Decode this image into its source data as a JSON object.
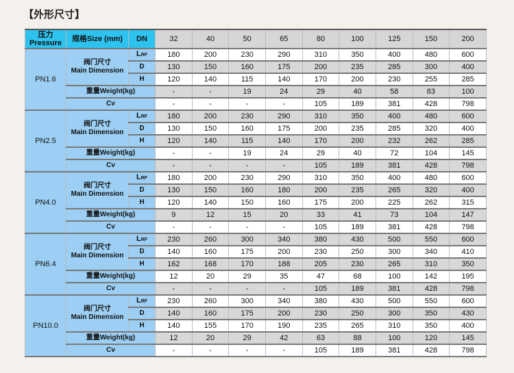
{
  "title": "【外形尺寸】",
  "header": {
    "pressure": "压力\nPressure",
    "pressure_cn": "压力",
    "pressure_en": "Pressure",
    "size": "规格Size (mm)",
    "dn": "DN",
    "sizes": [
      "32",
      "40",
      "50",
      "65",
      "80",
      "100",
      "125",
      "150",
      "200"
    ]
  },
  "labels": {
    "dim_cn": "阀门尺寸",
    "dim_en": "Main Dimension",
    "lrf": "LRF",
    "d": "D",
    "h": "H",
    "weight": "重量Weight(kg)",
    "cv": "Cv"
  },
  "groups": [
    {
      "pressure": "PN1.6",
      "lrf": [
        "180",
        "200",
        "230",
        "290",
        "310",
        "350",
        "400",
        "480",
        "600"
      ],
      "d": [
        "130",
        "150",
        "160",
        "175",
        "200",
        "235",
        "285",
        "300",
        "400"
      ],
      "h": [
        "120",
        "140",
        "115",
        "140",
        "170",
        "200",
        "230",
        "255",
        "285"
      ],
      "weight": [
        "-",
        "-",
        "19",
        "24",
        "29",
        "40",
        "58",
        "83",
        "100"
      ],
      "cv": [
        "-",
        "-",
        "-",
        "-",
        "105",
        "189",
        "381",
        "428",
        "798"
      ]
    },
    {
      "pressure": "PN2.5",
      "lrf": [
        "180",
        "200",
        "230",
        "290",
        "310",
        "350",
        "400",
        "480",
        "600"
      ],
      "d": [
        "130",
        "150",
        "160",
        "175",
        "200",
        "235",
        "285",
        "320",
        "400"
      ],
      "h": [
        "120",
        "140",
        "115",
        "140",
        "170",
        "200",
        "232",
        "262",
        "285"
      ],
      "weight": [
        "-",
        "-",
        "19",
        "24",
        "29",
        "40",
        "72",
        "104",
        "145"
      ],
      "cv": [
        "-",
        "-",
        "-",
        "-",
        "105",
        "189",
        "381",
        "428",
        "798"
      ]
    },
    {
      "pressure": "PN4.0",
      "lrf": [
        "180",
        "200",
        "230",
        "290",
        "310",
        "350",
        "400",
        "480",
        "600"
      ],
      "d": [
        "130",
        "150",
        "160",
        "180",
        "200",
        "235",
        "265",
        "320",
        "400"
      ],
      "h": [
        "120",
        "140",
        "150",
        "160",
        "175",
        "200",
        "225",
        "262",
        "315"
      ],
      "weight": [
        "9",
        "12",
        "15",
        "20",
        "33",
        "41",
        "73",
        "104",
        "147"
      ],
      "cv": [
        "-",
        "-",
        "-",
        "-",
        "105",
        "189",
        "381",
        "428",
        "798"
      ]
    },
    {
      "pressure": "PN6.4",
      "lrf": [
        "230",
        "260",
        "300",
        "340",
        "380",
        "430",
        "500",
        "550",
        "600"
      ],
      "d": [
        "140",
        "160",
        "175",
        "200",
        "230",
        "250",
        "300",
        "340",
        "410"
      ],
      "h": [
        "162",
        "168",
        "170",
        "188",
        "205",
        "230",
        "265",
        "310",
        "350"
      ],
      "weight": [
        "12",
        "20",
        "29",
        "35",
        "47",
        "68",
        "100",
        "142",
        "195"
      ],
      "cv": [
        "-",
        "-",
        "-",
        "-",
        "105",
        "189",
        "381",
        "428",
        "798"
      ]
    },
    {
      "pressure": "PN10.0",
      "lrf": [
        "230",
        "260",
        "300",
        "340",
        "380",
        "430",
        "500",
        "550",
        "600"
      ],
      "d": [
        "140",
        "160",
        "175",
        "200",
        "230",
        "250",
        "300",
        "350",
        "430"
      ],
      "h": [
        "140",
        "155",
        "170",
        "190",
        "235",
        "265",
        "310",
        "350",
        "400"
      ],
      "weight": [
        "12",
        "20",
        "29",
        "42",
        "63",
        "88",
        "100",
        "120",
        "145"
      ],
      "cv": [
        "-",
        "-",
        "-",
        "-",
        "105",
        "189",
        "381",
        "428",
        "798"
      ]
    }
  ]
}
